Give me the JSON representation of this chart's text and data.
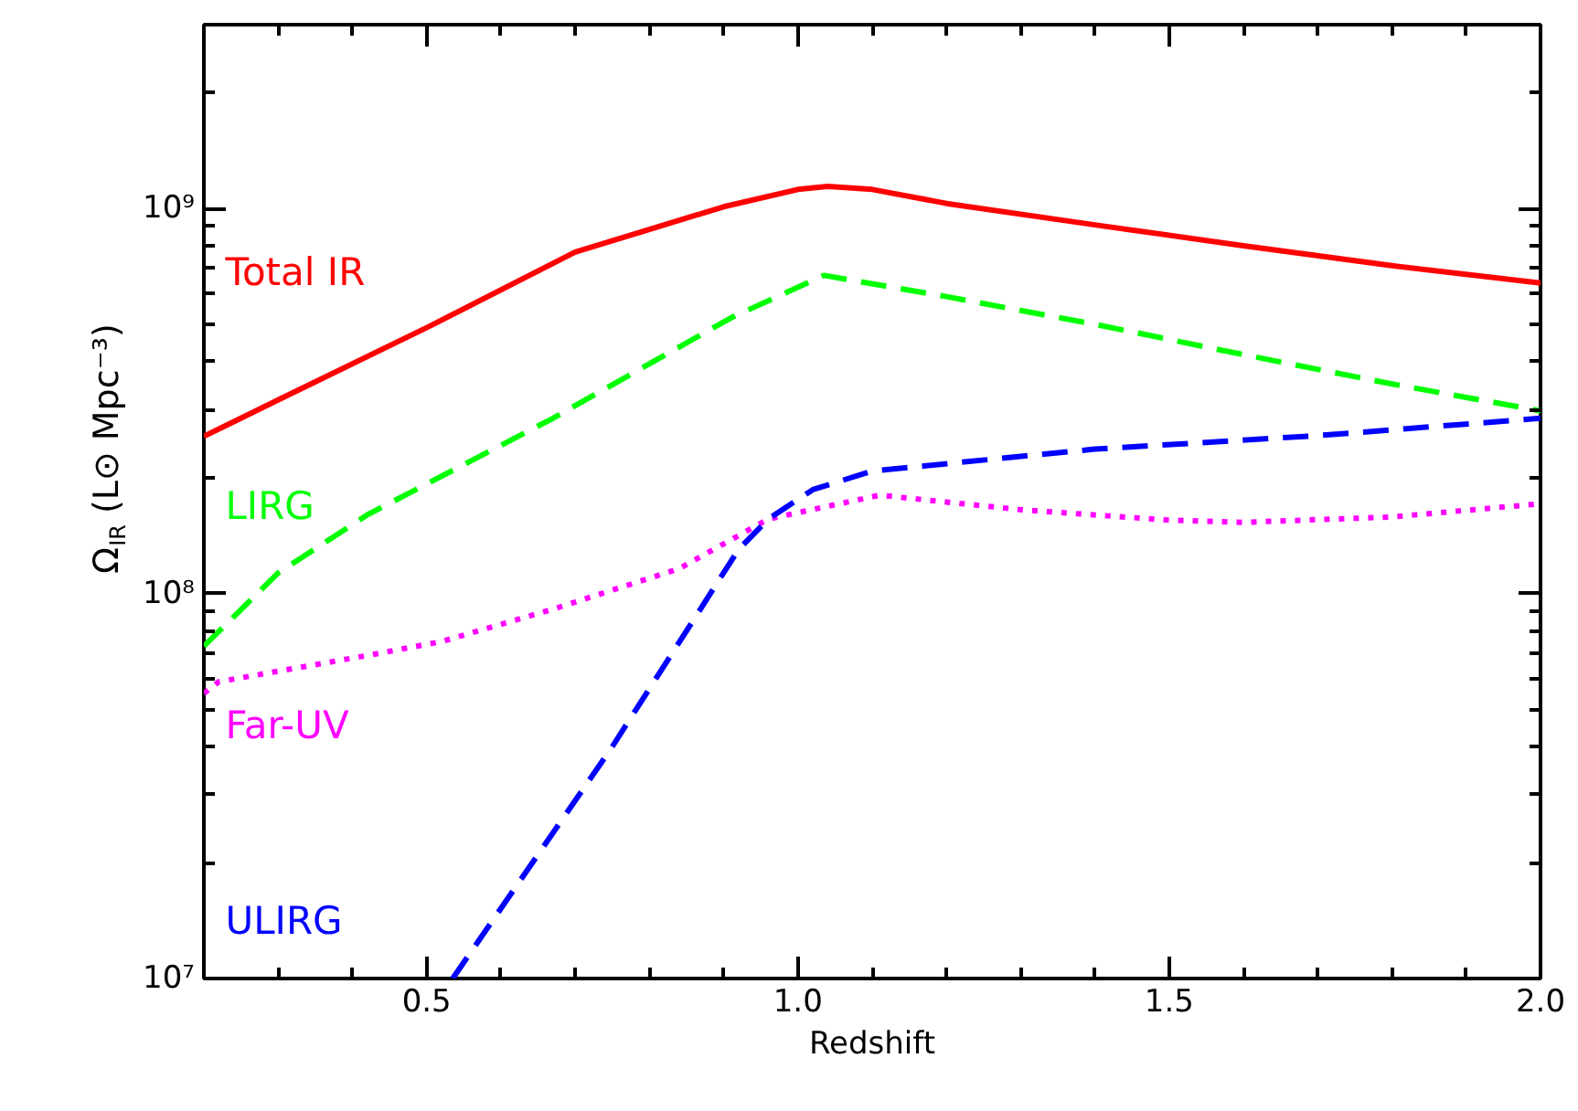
{
  "chart_data": {
    "type": "line",
    "xlabel": "Redshift",
    "ylabel": "Ω$_{IR}$ (L⊙ Mpc⁻³)",
    "log": "y",
    "grid": false,
    "xlim": [
      0.2,
      2.0
    ],
    "xticks": [
      0.5,
      {
        "value": 1.0,
        "label": "1.0"
      },
      1.5,
      {
        "value": 2.0,
        "label": "2.0"
      }
    ],
    "ylim": [
      10000000,
      3000000000
    ],
    "yticks": [
      {
        "value": 10000000,
        "label": "10⁷"
      },
      {
        "value": 100000000,
        "label": "10⁸"
      },
      {
        "value": 1000000000,
        "label": "10⁹"
      }
    ],
    "series": [
      {
        "name": "Total IR",
        "color": "#ff0000",
        "line_style": "solid",
        "x": [
          0.2,
          0.31,
          0.5,
          0.7,
          0.9,
          1.0,
          1.04,
          1.1,
          1.2,
          1.4,
          1.6,
          1.8,
          2.0
        ],
        "values": [
          256000000,
          325000000,
          490000000,
          770000000,
          1010000000,
          1120000000,
          1140000000,
          1120000000,
          1030000000,
          906000000,
          800000000,
          710000000,
          640000000
        ]
      },
      {
        "name": "LIRG",
        "color": "#00ff00",
        "line_style": "dashed",
        "x": [
          0.2,
          0.3,
          0.42,
          0.67,
          0.91,
          1.035,
          1.2,
          1.4,
          1.6,
          1.8,
          2.0
        ],
        "values": [
          73000000,
          113000000,
          160000000,
          285000000,
          520000000,
          670000000,
          590000000,
          500000000,
          417000000,
          350000000,
          298000000
        ]
      },
      {
        "name": "Far-UV",
        "color": "#ff00ff",
        "line_style": "dotted",
        "x": [
          0.2,
          0.22,
          0.42,
          0.52,
          0.67,
          0.84,
          0.96,
          1.11,
          1.3,
          1.5,
          1.6,
          1.8,
          2.0
        ],
        "values": [
          55000000,
          59000000,
          69000000,
          75000000,
          91000000,
          116000000,
          156000000,
          180000000,
          165000000,
          155000000,
          153000000,
          158000000,
          171000000
        ]
      },
      {
        "name": "ULIRG",
        "color": "#0000ff",
        "line_style": "dashed",
        "x": [
          0.535,
          0.75,
          0.92,
          0.96,
          1.02,
          1.1,
          1.4,
          1.7,
          2.0
        ],
        "values": [
          10000000,
          40000000,
          130000000,
          156000000,
          186000000,
          208000000,
          237000000,
          257000000,
          285000000
        ]
      }
    ]
  }
}
